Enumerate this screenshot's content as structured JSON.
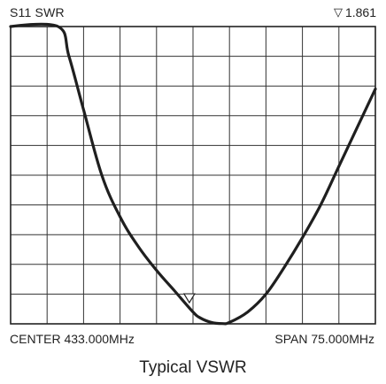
{
  "chart_data": {
    "type": "line",
    "title": "S11 SWR",
    "marker": {
      "symbol": "▽",
      "value": "1.861",
      "x": 0.49,
      "y": 1.861
    },
    "center_label": "CENTER 433.000MHz",
    "span_label": "SPAN 75.000MHz",
    "caption": "Typical VSWR",
    "grid": true,
    "grid_divisions": {
      "x": 10,
      "y": 10
    },
    "xlim": [
      0,
      1
    ],
    "ylim": [
      1,
      11
    ],
    "series": [
      {
        "x": [
          0,
          0.13,
          0.16,
          0.2,
          0.25,
          0.3,
          0.35,
          0.4,
          0.45,
          0.5,
          0.52,
          0.55,
          0.58,
          0.6,
          0.65,
          0.7,
          0.75,
          0.8,
          0.85,
          0.9,
          0.95,
          1.0
        ],
        "y": [
          11,
          11,
          10.0,
          8.2,
          6.0,
          4.6,
          3.6,
          2.8,
          2.1,
          1.4,
          1.2,
          1.05,
          1.01,
          1.05,
          1.4,
          2.0,
          2.9,
          3.9,
          5.0,
          6.3,
          7.6,
          8.9
        ]
      }
    ]
  }
}
